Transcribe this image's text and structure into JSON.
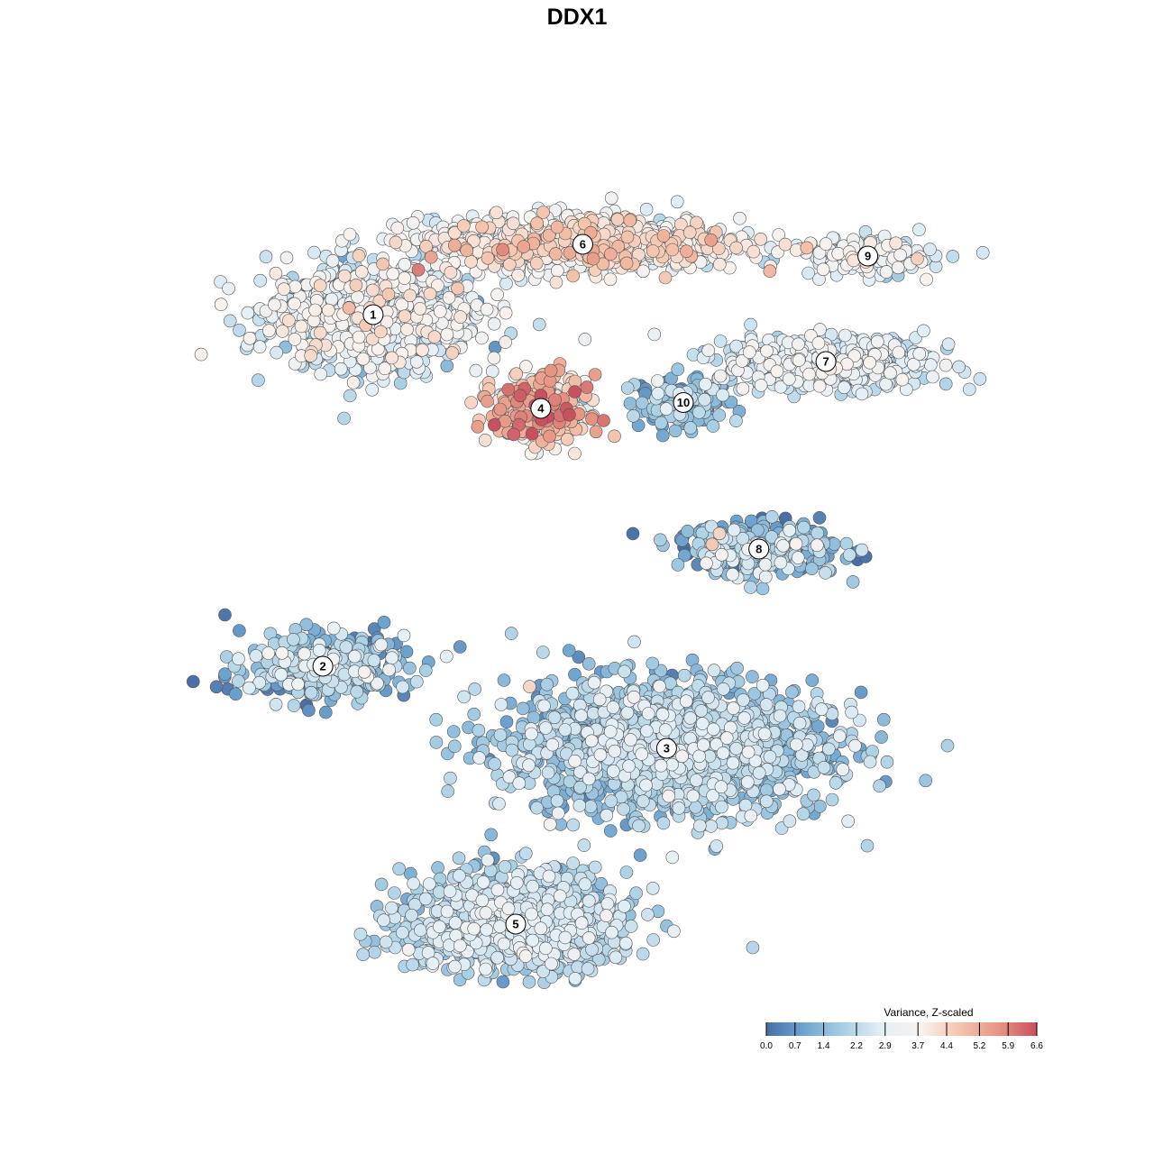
{
  "chart_data": {
    "type": "scatter",
    "title": "DDX1",
    "xlabel": "",
    "ylabel": "",
    "grid": false,
    "axes_visible": false,
    "xlim": [
      0,
      100
    ],
    "ylim": [
      0,
      100
    ],
    "color_scale": {
      "title": "Variance, Z-scaled",
      "min": 0.0,
      "max": 6.6,
      "ticks": [
        "0.0",
        "0.7",
        "1.4",
        "2.2",
        "2.9",
        "3.7",
        "4.4",
        "5.2",
        "5.9",
        "6.6"
      ],
      "tick_values": [
        0.0,
        0.7,
        1.4,
        2.2,
        2.9,
        3.7,
        4.4,
        5.2,
        5.9,
        6.6
      ],
      "colors": [
        "#4a6fa5",
        "#6fa6d0",
        "#a9cfe4",
        "#e4eff6",
        "#f8f2ee",
        "#f4c4ad",
        "#e79684",
        "#c8505f"
      ],
      "legend_placement": "bottom-right"
    },
    "clusters": [
      {
        "label": "1",
        "cx": 23,
        "cy": 64,
        "sx": 11,
        "sy": 8,
        "n": 950,
        "mean": 2.7,
        "sd": 0.7
      },
      {
        "label": "6",
        "cx": 48,
        "cy": 76,
        "sx": 17,
        "sy": 4,
        "n": 1000,
        "mean": 3.5,
        "sd": 0.7
      },
      {
        "label": "4",
        "cx": 43,
        "cy": 48,
        "sx": 5,
        "sy": 5,
        "n": 380,
        "mean": 4.2,
        "sd": 1.1
      },
      {
        "label": "10",
        "cx": 60,
        "cy": 49,
        "sx": 5,
        "sy": 4,
        "n": 130,
        "mean": 1.4,
        "sd": 0.6
      },
      {
        "label": "7",
        "cx": 77,
        "cy": 56,
        "sx": 11,
        "sy": 4,
        "n": 560,
        "mean": 2.6,
        "sd": 0.5
      },
      {
        "label": "9",
        "cx": 82,
        "cy": 74,
        "sx": 7,
        "sy": 3,
        "n": 170,
        "mean": 2.8,
        "sd": 0.6
      },
      {
        "label": "8",
        "cx": 69,
        "cy": 24,
        "sx": 9,
        "sy": 4,
        "n": 320,
        "mean": 1.4,
        "sd": 0.9
      },
      {
        "label": "2",
        "cx": 17,
        "cy": 4,
        "sx": 9,
        "sy": 5,
        "n": 380,
        "mean": 1.5,
        "sd": 0.8
      },
      {
        "label": "3",
        "cx": 58,
        "cy": -10,
        "sx": 17,
        "sy": 10,
        "n": 1750,
        "mean": 1.8,
        "sd": 0.6
      },
      {
        "label": "5",
        "cx": 40,
        "cy": -40,
        "sx": 12,
        "sy": 8,
        "n": 1000,
        "mean": 2.1,
        "sd": 0.5
      }
    ]
  }
}
